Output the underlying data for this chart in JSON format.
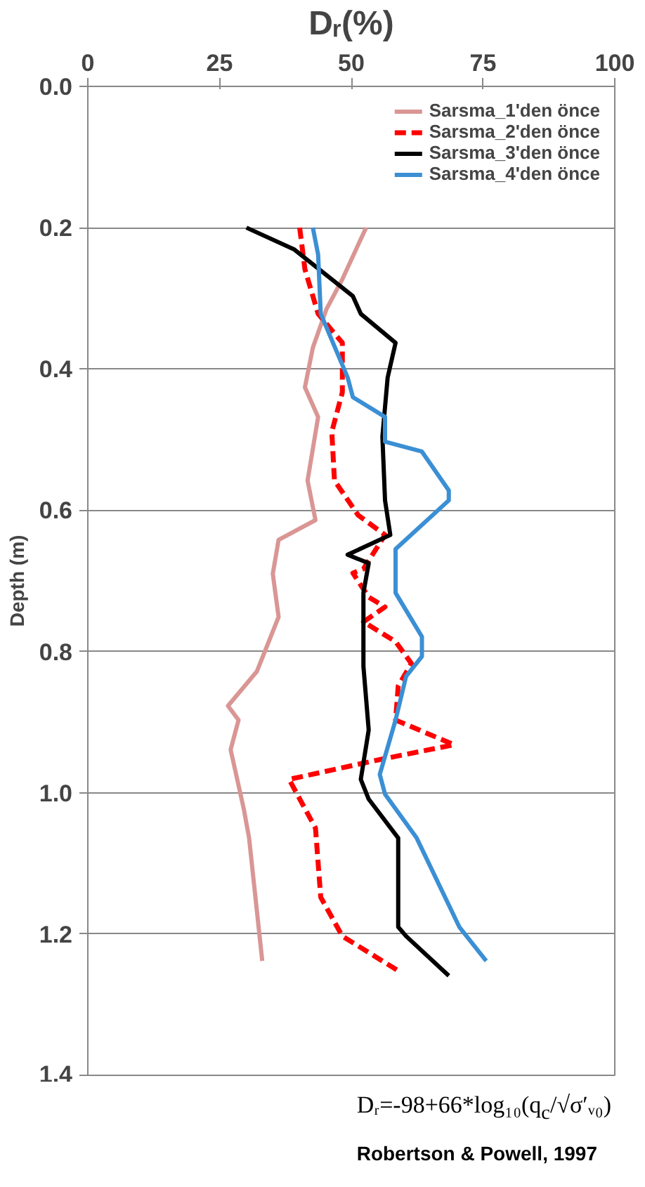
{
  "chart_data": {
    "type": "line",
    "xlabel": "Dᵣ(%)",
    "ylabel": "Depth (m)",
    "xlim": [
      0,
      100
    ],
    "xticks": [
      0,
      25,
      50,
      75,
      100
    ],
    "ylim": [
      1.4,
      0.0
    ],
    "yticks": [
      {
        "value": 0.0,
        "label": "0.0"
      },
      {
        "value": 0.2,
        "label": "0.2"
      },
      {
        "value": 0.4,
        "label": "0.4"
      },
      {
        "value": 0.6,
        "label": "0.6"
      },
      {
        "value": 0.8,
        "label": "0.8"
      },
      {
        "value": 1.0,
        "label": "1.0"
      },
      {
        "value": 1.2,
        "label": "1.2"
      },
      {
        "value": 1.4,
        "label": "1.4"
      }
    ],
    "grid": "y",
    "legend": "top right",
    "series": [
      {
        "name": "Sarsma_1'den önce",
        "color": "#d99694",
        "line_style": "solid",
        "x": [
          52.8,
          48.3,
          45.3,
          42.7,
          41.2,
          43.7,
          41.7,
          43.2,
          36.2,
          35.1,
          36.2,
          32.1,
          26.6,
          28.6,
          27.1,
          29.6,
          30.6,
          33.1
        ],
        "values": [
          0.2,
          0.273,
          0.315,
          0.37,
          0.426,
          0.468,
          0.558,
          0.614,
          0.642,
          0.69,
          0.751,
          0.828,
          0.877,
          0.897,
          0.939,
          1.023,
          1.064,
          1.238
        ]
      },
      {
        "name": "Sarsma_2'den önce",
        "color": "#ff0000",
        "line_style": "dashed",
        "x": [
          40.2,
          41.2,
          43.7,
          48.3,
          48.3,
          46.3,
          46.8,
          51.3,
          56.4,
          52.3,
          50.3,
          53.3,
          56.4,
          52.3,
          58.4,
          61.4,
          58.9,
          58.4,
          69.5,
          55.4,
          38.2,
          43.2,
          44.2,
          48.3,
          58.9
        ],
        "values": [
          0.2,
          0.259,
          0.322,
          0.363,
          0.433,
          0.489,
          0.558,
          0.607,
          0.635,
          0.683,
          0.689,
          0.723,
          0.737,
          0.758,
          0.786,
          0.817,
          0.849,
          0.897,
          0.932,
          0.953,
          0.981,
          1.05,
          1.148,
          1.203,
          1.252
        ]
      },
      {
        "name": "Sarsma_3'den önce",
        "color": "#000000",
        "line_style": "solid",
        "x": [
          30.1,
          39.2,
          50.3,
          51.8,
          58.4,
          56.9,
          55.9,
          56.4,
          57.4,
          49.3,
          53.3,
          52.3,
          52.3,
          53.3,
          51.8,
          53.3,
          58.9,
          58.9,
          60.4,
          68.5
        ],
        "values": [
          0.2,
          0.231,
          0.297,
          0.322,
          0.363,
          0.412,
          0.496,
          0.586,
          0.635,
          0.663,
          0.675,
          0.717,
          0.821,
          0.911,
          0.981,
          1.009,
          1.064,
          1.19,
          1.203,
          1.259
        ]
      },
      {
        "name": "Sarsma_4'den önce",
        "color": "#3b8fd4",
        "line_style": "solid",
        "x": [
          42.7,
          43.7,
          44.2,
          49.3,
          50.3,
          56.4,
          56.4,
          63.4,
          68.5,
          68.5,
          58.4,
          58.4,
          58.4,
          63.4,
          63.4,
          60.4,
          58.4,
          55.4,
          56.4,
          62.4,
          70.5,
          75.6
        ],
        "values": [
          0.2,
          0.238,
          0.322,
          0.412,
          0.44,
          0.468,
          0.503,
          0.517,
          0.572,
          0.586,
          0.655,
          0.661,
          0.717,
          0.779,
          0.807,
          0.835,
          0.897,
          0.974,
          1.002,
          1.064,
          1.19,
          1.238
        ]
      }
    ],
    "annotations": [
      "Dᵣ=-98+66*log₁₀(q$_{c}$/√σ′ᵥ₀)",
      "Robertson & Powell, 1997"
    ]
  }
}
